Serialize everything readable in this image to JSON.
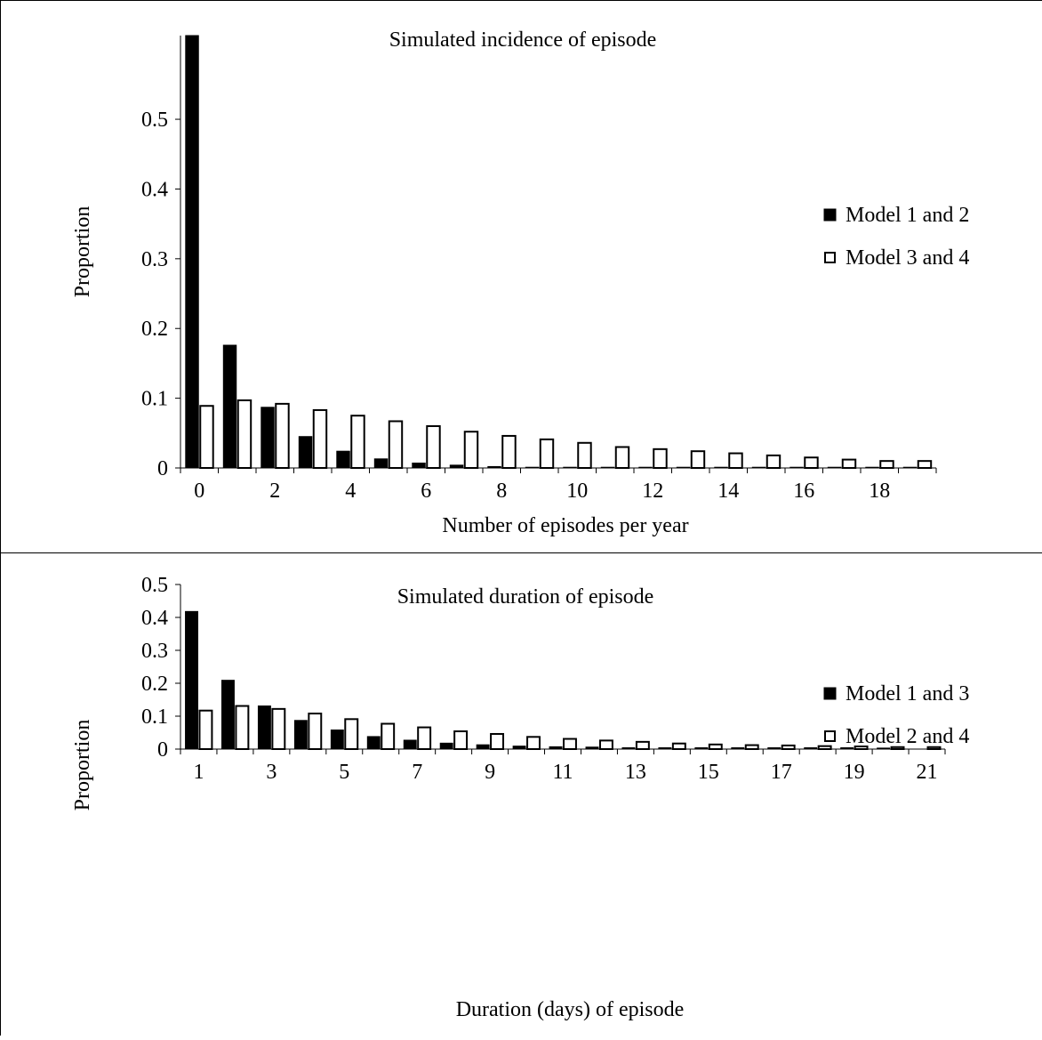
{
  "chart_data": [
    {
      "type": "bar",
      "title": "Simulated incidence of episode",
      "xlabel": "Number of episodes per year",
      "ylabel": "Proportion",
      "ylim": [
        0,
        0.62
      ],
      "yticks": [
        "0",
        "0.1",
        "0.2",
        "0.3",
        "0.4",
        "0.5"
      ],
      "x_tick_labels": [
        "0",
        "2",
        "4",
        "6",
        "8",
        "10",
        "12",
        "14",
        "16",
        "18"
      ],
      "categories": [
        "0",
        "1",
        "2",
        "3",
        "4",
        "5",
        "6",
        "7",
        "8",
        "9",
        "10",
        "11",
        "12",
        "13",
        "14",
        "15",
        "16",
        "17",
        "18",
        "19"
      ],
      "legend_position": "right",
      "grid": false,
      "series": [
        {
          "name": "Model 1 and 2",
          "color": "#000000",
          "fill": "solid",
          "values": [
            0.62,
            0.176,
            0.087,
            0.045,
            0.024,
            0.013,
            0.007,
            0.004,
            0.002,
            0.001,
            0.001,
            0.001,
            0.001,
            0.001,
            0.001,
            0.001,
            0.001,
            0.001,
            0.001,
            0.001
          ]
        },
        {
          "name": "Model 3 and 4",
          "color": "#000000",
          "fill": "hollow",
          "values": [
            0.089,
            0.097,
            0.092,
            0.083,
            0.075,
            0.067,
            0.06,
            0.052,
            0.046,
            0.041,
            0.036,
            0.03,
            0.027,
            0.024,
            0.021,
            0.018,
            0.015,
            0.012,
            0.01,
            0.01
          ]
        }
      ]
    },
    {
      "type": "bar",
      "title": "Simulated duration of episode",
      "xlabel": "Duration (days) of episode",
      "ylabel": "Proportion",
      "ylim": [
        0,
        0.5
      ],
      "yticks": [
        "0",
        "0.1",
        "0.2",
        "0.3",
        "0.4",
        "0.5"
      ],
      "x_tick_labels": [
        "1",
        "3",
        "5",
        "7",
        "9",
        "11",
        "13",
        "15",
        "17",
        "19",
        "21"
      ],
      "categories": [
        "1",
        "2",
        "3",
        "4",
        "5",
        "6",
        "7",
        "8",
        "9",
        "10",
        "11",
        "12",
        "13",
        "14",
        "15",
        "16",
        "17",
        "18",
        "19",
        "20",
        "21"
      ],
      "legend_position": "right",
      "grid": false,
      "series": [
        {
          "name": "Model 1 and 3",
          "color": "#000000",
          "fill": "solid",
          "values": [
            0.418,
            0.209,
            0.131,
            0.087,
            0.058,
            0.038,
            0.027,
            0.018,
            0.013,
            0.009,
            0.007,
            0.006,
            0.004,
            0.004,
            0.004,
            0.004,
            0.004,
            0.004,
            0.004,
            0.003,
            0.0
          ]
        },
        {
          "name": "Model 2 and 4",
          "color": "#000000",
          "fill": "hollow",
          "values": [
            0.117,
            0.131,
            0.122,
            0.108,
            0.091,
            0.077,
            0.066,
            0.054,
            0.046,
            0.037,
            0.031,
            0.026,
            0.022,
            0.017,
            0.014,
            0.012,
            0.011,
            0.009,
            0.008,
            0.006,
            0.006
          ]
        }
      ]
    }
  ]
}
